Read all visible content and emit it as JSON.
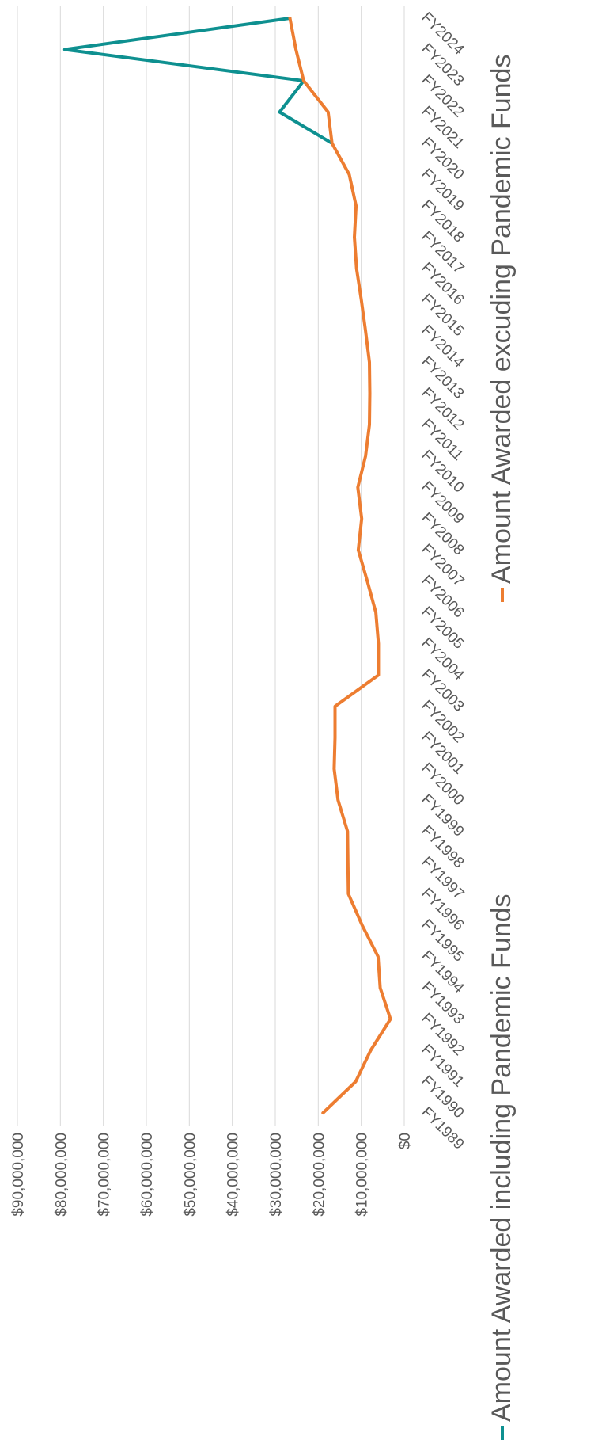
{
  "chart_data": {
    "type": "line",
    "title": "",
    "xlabel": "",
    "ylabel": "",
    "orientation": "rotated-90-clockwise",
    "categories": [
      "FY1989",
      "FY1990",
      "FY1991",
      "FY1992",
      "FY1993",
      "FY1994",
      "FY1995",
      "FY1996",
      "FY1997",
      "FY1998",
      "FY1999",
      "FY2000",
      "FY2001",
      "FY2002",
      "FY2003",
      "FY2004",
      "FY2005",
      "FY2006",
      "FY2007",
      "FY2008",
      "FY2009",
      "FY2010",
      "FY2011",
      "FY2012",
      "FY2013",
      "FY2014",
      "FY2015",
      "FY2016",
      "FY2017",
      "FY2018",
      "FY2019",
      "FY2020",
      "FY2021",
      "FY2022",
      "FY2023",
      "FY2024"
    ],
    "ylim": [
      0,
      90000000
    ],
    "y_ticks": [
      0,
      10000000,
      20000000,
      30000000,
      40000000,
      50000000,
      60000000,
      70000000,
      80000000,
      90000000
    ],
    "y_tick_labels": [
      "$0",
      "$10,000,000",
      "$20,000,000",
      "$30,000,000",
      "$40,000,000",
      "$50,000,000",
      "$60,000,000",
      "$70,000,000",
      "$80,000,000",
      "$90,000,000"
    ],
    "grid": true,
    "legend_position": "bottom",
    "series": [
      {
        "name": "Amount Awarded including Pandemic Funds",
        "color": "#0e9090",
        "values": [
          null,
          null,
          null,
          null,
          null,
          null,
          null,
          null,
          null,
          null,
          null,
          null,
          null,
          null,
          null,
          null,
          null,
          null,
          null,
          null,
          null,
          null,
          null,
          null,
          null,
          null,
          null,
          null,
          null,
          null,
          null,
          16800000,
          29000000,
          23400000,
          79000000,
          26600000
        ]
      },
      {
        "name": "Amount Awarded excuding Pandemic Funds",
        "color": "#ed7d31",
        "values": [
          18900000,
          11300000,
          7800000,
          3200000,
          5600000,
          6100000,
          9800000,
          13000000,
          13100000,
          13200000,
          15400000,
          16300000,
          16100000,
          16100000,
          6000000,
          6000000,
          6600000,
          8600000,
          10700000,
          9900000,
          10800000,
          9000000,
          8100000,
          8000000,
          8100000,
          9000000,
          10000000,
          11100000,
          11600000,
          11200000,
          12800000,
          16800000,
          17700000,
          23400000,
          25200000,
          26600000
        ]
      }
    ]
  }
}
